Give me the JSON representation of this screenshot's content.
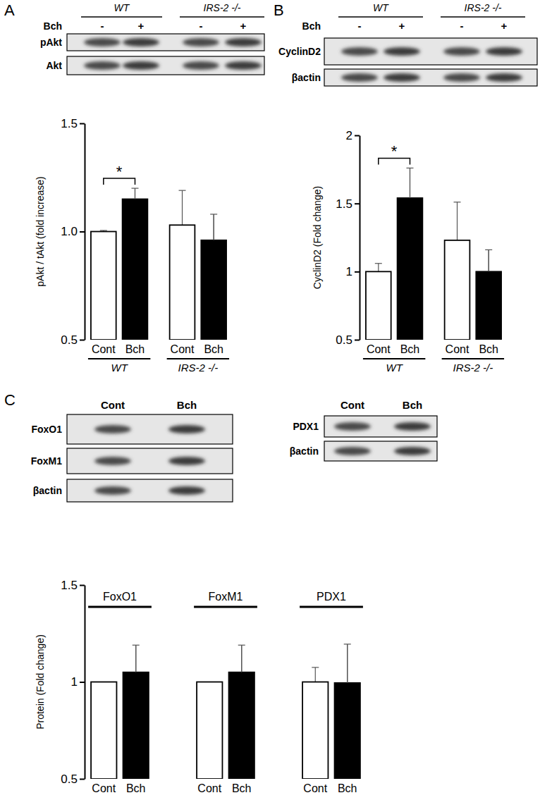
{
  "chart_data": [
    {
      "type": "bar",
      "title": "A",
      "y_label": "pAkt / tAkt  (fold increase)",
      "categories": [
        "Cont",
        "Bch",
        "Cont",
        "Bch"
      ],
      "groups": [
        "WT",
        "IRS-2 -/-"
      ],
      "values": [
        1.0,
        1.15,
        1.03,
        0.96
      ],
      "errors": [
        0.005,
        0.05,
        0.16,
        0.12
      ],
      "colors": [
        "#ffffff",
        "#000000",
        "#ffffff",
        "#000000"
      ],
      "ylim": [
        0.5,
        1.5
      ],
      "yticks": [
        0.5,
        {
          "value": 1,
          "label": "1.0"
        },
        1.5
      ],
      "significance": [
        {
          "label": "*",
          "between": [
            0,
            1
          ]
        }
      ],
      "blot": {
        "groups": [
          "WT",
          "IRS-2 -/-"
        ],
        "treatment_label": "Bch",
        "treatments": [
          "-",
          "+",
          "-",
          "+"
        ],
        "rows": [
          "pAkt",
          "Akt"
        ]
      }
    },
    {
      "type": "bar",
      "title": "B",
      "y_label": "CyclinD2  (Fold change)",
      "categories": [
        "Cont",
        "Bch",
        "Cont",
        "Bch"
      ],
      "groups": [
        "WT",
        "IRS-2 -/-"
      ],
      "values": [
        1.0,
        1.54,
        1.23,
        1.0
      ],
      "errors": [
        0.06,
        0.22,
        0.28,
        0.16
      ],
      "colors": [
        "#ffffff",
        "#000000",
        "#ffffff",
        "#000000"
      ],
      "ylim": [
        0.5,
        2
      ],
      "yticks": [
        0.5,
        1,
        1.5,
        2
      ],
      "significance": [
        {
          "label": "*",
          "between": [
            0,
            1
          ]
        }
      ],
      "blot": {
        "groups": [
          "WT",
          "IRS-2 -/-"
        ],
        "treatment_label": "Bch",
        "treatments": [
          "-",
          "+",
          "-",
          "+"
        ],
        "rows": [
          "CyclinD2",
          "βactin"
        ]
      }
    },
    {
      "type": "bar",
      "title": "C",
      "y_label": "Protein  (Fold change)",
      "categories": [
        "Cont",
        "Bch",
        "Cont",
        "Bch",
        "Cont",
        "Bch"
      ],
      "groups": [
        "FoxO1",
        "FoxM1",
        "PDX1"
      ],
      "values": [
        1.0,
        1.05,
        1.0,
        1.05,
        1.0,
        0.995
      ],
      "errors": [
        null,
        0.14,
        null,
        0.14,
        0.075,
        0.2
      ],
      "colors": [
        "#ffffff",
        "#000000",
        "#ffffff",
        "#000000",
        "#ffffff",
        "#000000"
      ],
      "ylim": [
        0.5,
        1.5
      ],
      "yticks": [
        0.5,
        1,
        1.5
      ],
      "blots": [
        {
          "columns": [
            "Cont",
            "Bch"
          ],
          "rows": [
            "FoxO1",
            "FoxM1",
            "βactin"
          ]
        },
        {
          "columns": [
            "Cont",
            "Bch"
          ],
          "rows": [
            "PDX1",
            "βactin"
          ]
        }
      ]
    }
  ]
}
